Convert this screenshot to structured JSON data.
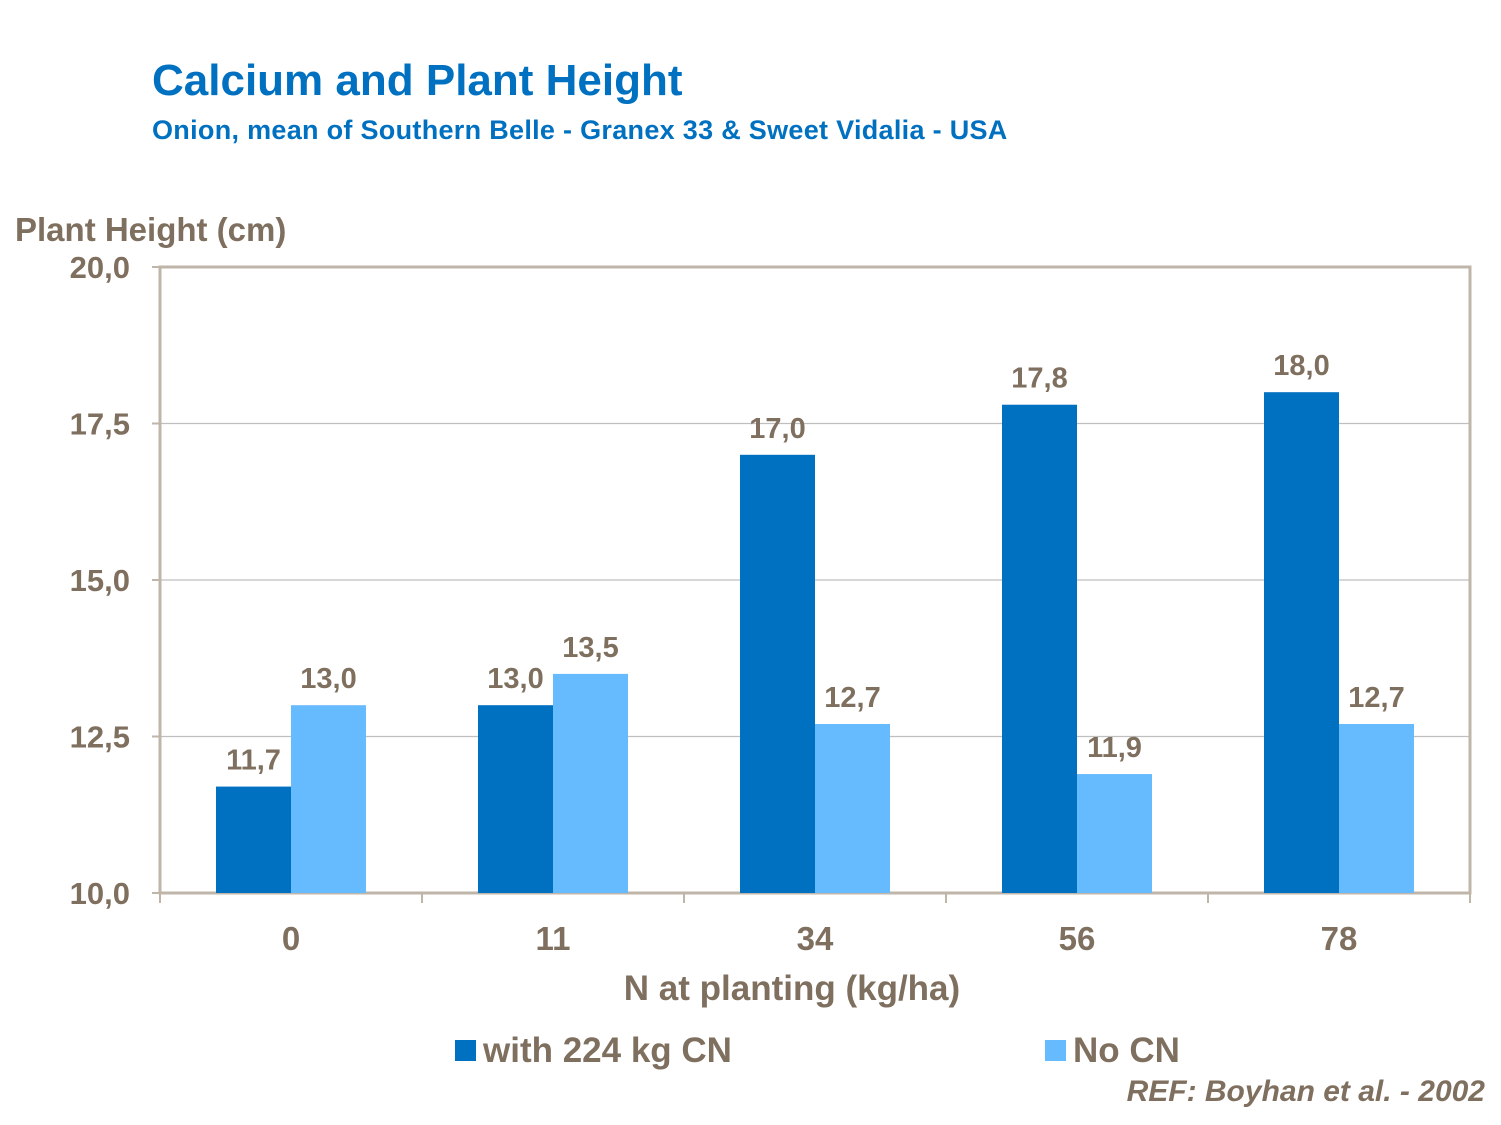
{
  "title": "Calcium and Plant Height",
  "subtitle": "Onion, mean of Southern Belle - Granex 33 & Sweet Vidalia - USA",
  "reference": "REF: Boyhan et al. - 2002",
  "colors": {
    "title": "#0070c0",
    "axis_text": "#7f6f5f",
    "series_with_cn": "#0070c0",
    "series_no_cn": "#66bbff",
    "plot_border": "#bfb5a8",
    "gridline": "#bfbfbf"
  },
  "chart_data": {
    "type": "bar",
    "title": "Calcium and Plant Height",
    "ylabel": "Plant Height (cm)",
    "xlabel": "N at planting (kg/ha)",
    "ylim": [
      10.0,
      20.0
    ],
    "yticks": [
      "10,0",
      "12,5",
      "15,0",
      "17,5",
      "20,0"
    ],
    "ytick_values": [
      10.0,
      12.5,
      15.0,
      17.5,
      20.0
    ],
    "categories": [
      "0",
      "11",
      "34",
      "56",
      "78"
    ],
    "series": [
      {
        "name": "with 224 kg CN",
        "color": "#0070c0",
        "values": [
          11.7,
          13.0,
          17.0,
          17.8,
          18.0
        ],
        "labels": [
          "11,7",
          "13,0",
          "17,0",
          "17,8",
          "18,0"
        ]
      },
      {
        "name": "No CN",
        "color": "#66bbff",
        "values": [
          13.0,
          13.5,
          12.7,
          11.9,
          12.7
        ],
        "labels": [
          "13,0",
          "13,5",
          "12,7",
          "11,9",
          "12,7"
        ]
      }
    ],
    "legend_position": "bottom",
    "grid": true
  }
}
